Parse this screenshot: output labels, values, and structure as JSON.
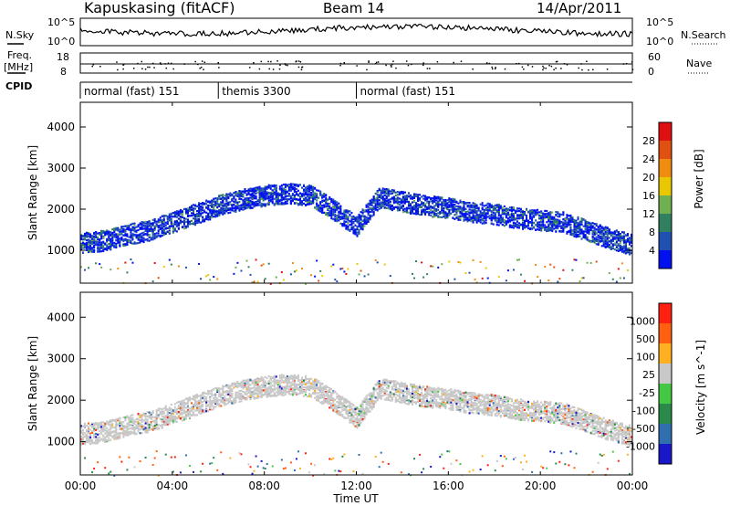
{
  "header": {
    "station": "Kapuskasing (fitACF)",
    "beam": "Beam 14",
    "date": "14/Apr/2011"
  },
  "noise_panel": {
    "left_label": "N.Sky",
    "right_label": "N.Search",
    "left_ticks": [
      "10^5",
      "10^0"
    ],
    "right_ticks": [
      "10^5",
      "10^0"
    ]
  },
  "freq_panel": {
    "left_label_1": "Freq.",
    "left_label_2": "[MHz]",
    "left_ticks": [
      "18",
      "8"
    ],
    "right_label": "Nave",
    "right_ticks": [
      "60",
      "0"
    ]
  },
  "cpid_panel": {
    "label": "CPID",
    "segments": [
      {
        "label": "normal (fast) 151",
        "start_hour": 0,
        "end_hour": 6
      },
      {
        "label": "themis 3300",
        "start_hour": 6,
        "end_hour": 12
      },
      {
        "label": "normal (fast) 151",
        "start_hour": 12,
        "end_hour": 24
      }
    ]
  },
  "x_axis": {
    "label": "Time UT",
    "ticks": [
      "00:00",
      "04:00",
      "08:00",
      "12:00",
      "16:00",
      "20:00",
      "00:00"
    ],
    "tick_hours": [
      0,
      4,
      8,
      12,
      16,
      20,
      24
    ]
  },
  "power_panel": {
    "ylabel": "Slant Range [km]",
    "colorbar_label": "Power [dB]",
    "colorbar_ticks": [
      "28",
      "24",
      "20",
      "16",
      "12",
      "8",
      "4"
    ],
    "colors": [
      "#0010ee",
      "#2050b0",
      "#308060",
      "#70b050",
      "#e8c800",
      "#f08c10",
      "#e05010",
      "#e01010"
    ]
  },
  "velocity_panel": {
    "ylabel": "Slant Range [km]",
    "colorbar_label": "Velocity [m s^-1]",
    "colorbar_ticks": [
      "1000",
      "500",
      "100",
      "25",
      "-25",
      "-100",
      "-500",
      "-1000"
    ],
    "colors": [
      "#1818c8",
      "#2f6fb0",
      "#2a8a4a",
      "#44c844",
      "#c8c8c8",
      "#ffb020",
      "#ff6010",
      "#ff2010"
    ]
  },
  "chart_data": [
    {
      "type": "heatmap",
      "title": "Power",
      "xlabel": "Time UT",
      "ylabel": "Slant Range [km]",
      "xlim": [
        0,
        24
      ],
      "ylim": [
        200,
        4600
      ],
      "yticks": [
        1000,
        2000,
        3000,
        4000
      ],
      "colorbar": {
        "label": "Power [dB]",
        "range": [
          2,
          30
        ],
        "ticks": [
          4,
          8,
          12,
          16,
          20,
          24,
          28
        ]
      },
      "echo_band_center_km": {
        "hours": [
          0,
          1,
          2,
          3,
          4,
          5,
          6,
          7,
          8,
          9,
          10,
          11,
          12,
          13,
          14,
          15,
          16,
          17,
          18,
          19,
          20,
          21,
          22,
          23,
          24
        ],
        "range_km": [
          1200,
          1250,
          1400,
          1500,
          1700,
          1900,
          2100,
          2250,
          2350,
          2400,
          2350,
          2000,
          1600,
          2300,
          2200,
          2100,
          2050,
          1950,
          1900,
          1800,
          1750,
          1700,
          1500,
          1300,
          1150
        ]
      }
    },
    {
      "type": "heatmap",
      "title": "Velocity",
      "xlabel": "Time UT",
      "ylabel": "Slant Range [km]",
      "xlim": [
        0,
        24
      ],
      "ylim": [
        200,
        4600
      ],
      "yticks": [
        1000,
        2000,
        3000,
        4000
      ],
      "colorbar": {
        "label": "Velocity [m s^-1]",
        "ticks": [
          1000,
          500,
          100,
          25,
          -25,
          -100,
          -500,
          -1000
        ]
      },
      "echo_band_center_km": {
        "hours": [
          0,
          1,
          2,
          3,
          4,
          5,
          6,
          7,
          8,
          9,
          10,
          11,
          12,
          13,
          14,
          15,
          16,
          17,
          18,
          19,
          20,
          21,
          22,
          23,
          24
        ],
        "range_km": [
          1200,
          1250,
          1400,
          1500,
          1700,
          1900,
          2100,
          2250,
          2350,
          2400,
          2350,
          2000,
          1600,
          2300,
          2200,
          2100,
          2050,
          1950,
          1900,
          1800,
          1750,
          1700,
          1500,
          1300,
          1150
        ]
      }
    }
  ]
}
